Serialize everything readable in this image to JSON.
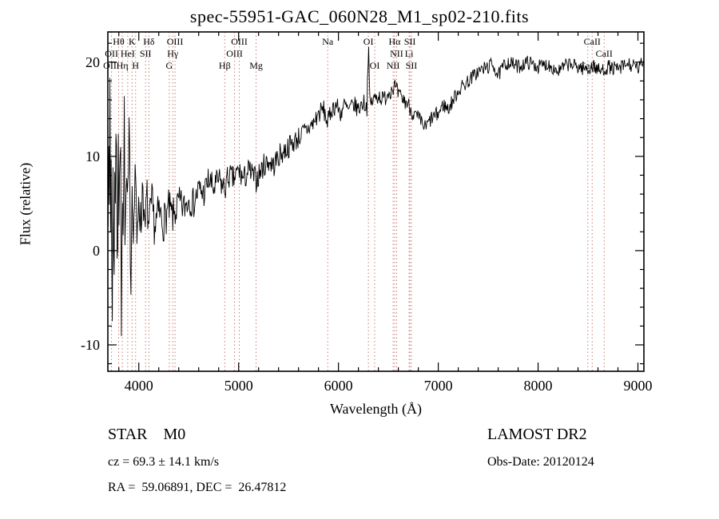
{
  "title": "spec-55951-GAC_060N28_M1_sp02-210.fits",
  "footer": {
    "class_label": "STAR    M0",
    "survey": "LAMOST DR2",
    "cz": "cz = 69.3 ± 14.1 km/s",
    "obs_date": "Obs-Date: 20120124",
    "radec": "RA =  59.06891, DEC =  26.47812"
  },
  "chart_data": {
    "type": "line",
    "title": "spec-55951-GAC_060N28_M1_sp02-210.fits",
    "xlabel": "Wavelength (Å)",
    "ylabel": "Flux (relative)",
    "xlim": [
      3690,
      9060
    ],
    "ylim": [
      -12.8,
      23.2
    ],
    "x_ticks": [
      4000,
      5000,
      6000,
      7000,
      8000,
      9000
    ],
    "x_minor_step": 200,
    "y_ticks": [
      -10,
      0,
      10,
      20
    ],
    "y_minor_step": 2,
    "grid": false,
    "line_color": "#000000",
    "spectral_line_color": "#cc7a7a",
    "anchors": [
      [
        3690,
        5
      ],
      [
        3700,
        18
      ],
      [
        3706,
        -5
      ],
      [
        3712,
        20
      ],
      [
        3718,
        -2
      ],
      [
        3725,
        16
      ],
      [
        3732,
        -13
      ],
      [
        3740,
        10
      ],
      [
        3750,
        -8
      ],
      [
        3758,
        14
      ],
      [
        3765,
        2
      ],
      [
        3775,
        19
      ],
      [
        3785,
        -4
      ],
      [
        3795,
        12
      ],
      [
        3805,
        0
      ],
      [
        3815,
        16
      ],
      [
        3825,
        -6
      ],
      [
        3835,
        10
      ],
      [
        3845,
        2
      ],
      [
        3855,
        14
      ],
      [
        3865,
        -2
      ],
      [
        3875,
        8
      ],
      [
        3890,
        3
      ],
      [
        3905,
        12
      ],
      [
        3920,
        -3
      ],
      [
        3935,
        9
      ],
      [
        3950,
        1
      ],
      [
        3965,
        11
      ],
      [
        3980,
        -1
      ],
      [
        4000,
        7
      ],
      [
        4020,
        2
      ],
      [
        4040,
        8
      ],
      [
        4060,
        1
      ],
      [
        4080,
        6
      ],
      [
        4100,
        2
      ],
      [
        4130,
        5
      ],
      [
        4160,
        2.5
      ],
      [
        4200,
        4
      ],
      [
        4250,
        3
      ],
      [
        4300,
        4.5
      ],
      [
        4340,
        3.5
      ],
      [
        4400,
        5
      ],
      [
        4450,
        4.5
      ],
      [
        4500,
        5.5
      ],
      [
        4550,
        5
      ],
      [
        4600,
        6.5
      ],
      [
        4650,
        6
      ],
      [
        4700,
        7.5
      ],
      [
        4750,
        6.5
      ],
      [
        4800,
        7.5
      ],
      [
        4861,
        6.5
      ],
      [
        4900,
        8
      ],
      [
        4950,
        7.5
      ],
      [
        5000,
        8.5
      ],
      [
        5050,
        7.5
      ],
      [
        5100,
        8.5
      ],
      [
        5175,
        7.5
      ],
      [
        5250,
        9
      ],
      [
        5300,
        9.5
      ],
      [
        5350,
        9
      ],
      [
        5400,
        10
      ],
      [
        5450,
        10.5
      ],
      [
        5500,
        11
      ],
      [
        5550,
        11.5
      ],
      [
        5600,
        12
      ],
      [
        5650,
        12.5
      ],
      [
        5700,
        13
      ],
      [
        5750,
        13.5
      ],
      [
        5800,
        14.5
      ],
      [
        5850,
        15
      ],
      [
        5893,
        13.5
      ],
      [
        5930,
        15
      ],
      [
        5980,
        15.5
      ],
      [
        6020,
        14.5
      ],
      [
        6060,
        15.5
      ],
      [
        6100,
        14.8
      ],
      [
        6150,
        15.5
      ],
      [
        6200,
        15
      ],
      [
        6250,
        15.8
      ],
      [
        6285,
        15.2
      ],
      [
        6300,
        22
      ],
      [
        6315,
        15.5
      ],
      [
        6350,
        16
      ],
      [
        6400,
        16.5
      ],
      [
        6450,
        16
      ],
      [
        6500,
        16.8
      ],
      [
        6563,
        17.5
      ],
      [
        6600,
        16.5
      ],
      [
        6650,
        16
      ],
      [
        6700,
        15.5
      ],
      [
        6750,
        14.5
      ],
      [
        6800,
        14
      ],
      [
        6870,
        13
      ],
      [
        6930,
        14
      ],
      [
        7000,
        14.5
      ],
      [
        7050,
        15.5
      ],
      [
        7100,
        15
      ],
      [
        7150,
        16
      ],
      [
        7200,
        17
      ],
      [
        7300,
        18
      ],
      [
        7400,
        19
      ],
      [
        7500,
        19.5
      ],
      [
        7550,
        19.8
      ],
      [
        7600,
        18.5
      ],
      [
        7650,
        19.5
      ],
      [
        7700,
        20
      ],
      [
        7800,
        19.5
      ],
      [
        7900,
        20
      ],
      [
        8000,
        19.5
      ],
      [
        8100,
        19.8
      ],
      [
        8200,
        19
      ],
      [
        8300,
        19.8
      ],
      [
        8400,
        19.5
      ],
      [
        8500,
        19.2
      ],
      [
        8550,
        19.6
      ],
      [
        8620,
        19
      ],
      [
        8700,
        19.5
      ],
      [
        8800,
        19.2
      ],
      [
        8900,
        19.8
      ],
      [
        9000,
        19.3
      ],
      [
        9055,
        20
      ]
    ],
    "noise": {
      "seed": 7,
      "step": 6,
      "amp_anchors": [
        [
          3690,
          6.5
        ],
        [
          3780,
          5.5
        ],
        [
          3900,
          4
        ],
        [
          4050,
          2.6
        ],
        [
          4200,
          2.2
        ],
        [
          4500,
          1.7
        ],
        [
          5000,
          1.4
        ],
        [
          5600,
          1.2
        ],
        [
          6000,
          1.0
        ],
        [
          6600,
          0.9
        ],
        [
          7200,
          0.8
        ],
        [
          8000,
          0.75
        ],
        [
          9060,
          0.8
        ]
      ]
    },
    "spectral_lines": [
      3727,
      3798,
      3835,
      3889,
      3933,
      3968,
      4068,
      4101,
      4305,
      4340,
      4363,
      4861,
      4959,
      5007,
      5175,
      5893,
      6300,
      6363,
      6548,
      6563,
      6583,
      6708,
      6716,
      6731,
      8498,
      8542,
      8662
    ],
    "line_labels": [
      {
        "text": "Hθ",
        "wav": 3798,
        "row": 0
      },
      {
        "text": "K",
        "wav": 3933,
        "row": 0
      },
      {
        "text": "Hδ",
        "wav": 4101,
        "row": 0
      },
      {
        "text": "OIII",
        "wav": 4363,
        "row": 0
      },
      {
        "text": "OIII",
        "wav": 5007,
        "row": 0
      },
      {
        "text": "Na",
        "wav": 5893,
        "row": 0
      },
      {
        "text": "OI",
        "wav": 6300,
        "row": 0
      },
      {
        "text": "Hα",
        "wav": 6563,
        "row": 0
      },
      {
        "text": "SII",
        "wav": 6716,
        "row": 0
      },
      {
        "text": "CaII",
        "wav": 8542,
        "row": 0
      },
      {
        "text": "OII",
        "wav": 3727,
        "row": 1
      },
      {
        "text": "HeI",
        "wav": 3889,
        "row": 1
      },
      {
        "text": "SII",
        "wav": 4068,
        "row": 1
      },
      {
        "text": "Hγ",
        "wav": 4340,
        "row": 1
      },
      {
        "text": "OIII",
        "wav": 4959,
        "row": 1
      },
      {
        "text": "NII",
        "wav": 6583,
        "row": 1
      },
      {
        "text": "Li",
        "wav": 6708,
        "row": 1
      },
      {
        "text": "CaII",
        "wav": 8662,
        "row": 1
      },
      {
        "text": "OII",
        "wav": 3710,
        "row": 2
      },
      {
        "text": "Hη",
        "wav": 3835,
        "row": 2
      },
      {
        "text": "H",
        "wav": 3968,
        "row": 2
      },
      {
        "text": "G",
        "wav": 4305,
        "row": 2
      },
      {
        "text": "Hβ",
        "wav": 4861,
        "row": 2
      },
      {
        "text": "Mg",
        "wav": 5175,
        "row": 2
      },
      {
        "text": "OI",
        "wav": 6363,
        "row": 2
      },
      {
        "text": "NII",
        "wav": 6548,
        "row": 2
      },
      {
        "text": "SII",
        "wav": 6731,
        "row": 2
      },
      {
        "text": "CaII",
        "wav": 8498,
        "row": 2
      }
    ]
  }
}
